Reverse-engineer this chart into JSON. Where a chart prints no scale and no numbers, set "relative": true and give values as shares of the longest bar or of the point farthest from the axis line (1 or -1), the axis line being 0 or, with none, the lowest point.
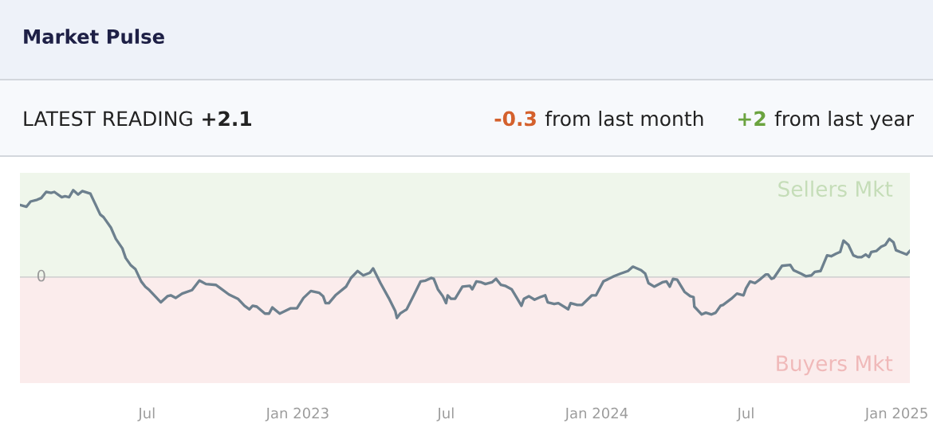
{
  "chart_data": {
    "type": "line",
    "title": "Market Pulse",
    "annotations": [
      "LATEST READING",
      "+2.1",
      "-0.3",
      "from last month",
      "+2",
      "from last year"
    ],
    "relative": true,
    "line_style": "solid",
    "x": [
      "2022-01-27",
      "2022-02-04",
      "2022-02-09",
      "2022-02-17",
      "2022-02-22",
      "2022-02-28",
      "2022-03-06",
      "2022-03-10",
      "2022-03-19",
      "2022-03-23",
      "2022-03-28",
      "2022-04-02",
      "2022-04-08",
      "2022-04-13",
      "2022-04-23",
      "2022-04-28",
      "2022-05-05",
      "2022-05-09",
      "2022-05-18",
      "2022-05-24",
      "2022-06-01",
      "2022-06-05",
      "2022-06-11",
      "2022-06-17",
      "2022-06-24",
      "2022-06-29",
      "2022-07-04",
      "2022-07-18",
      "2022-07-26",
      "2022-07-30",
      "2022-08-05",
      "2022-08-13",
      "2022-08-25",
      "2022-09-03",
      "2022-09-11",
      "2022-09-23",
      "2022-09-29",
      "2022-10-09",
      "2022-10-20",
      "2022-10-28",
      "2022-11-03",
      "2022-11-07",
      "2022-11-12",
      "2022-11-22",
      "2022-11-27",
      "2022-12-01",
      "2022-12-10",
      "2022-12-23",
      "2022-12-31",
      "2023-01-08",
      "2023-01-17",
      "2023-01-27",
      "2023-02-01",
      "2023-02-04",
      "2023-02-08",
      "2023-02-16",
      "2023-03-01",
      "2023-03-07",
      "2023-03-15",
      "2023-03-22",
      "2023-03-30",
      "2023-04-03",
      "2023-04-12",
      "2023-04-22",
      "2023-04-30",
      "2023-05-02",
      "2023-05-06",
      "2023-05-14",
      "2023-05-22",
      "2023-05-31",
      "2023-06-06",
      "2023-06-13",
      "2023-06-16",
      "2023-06-21",
      "2023-06-27",
      "2023-07-01",
      "2023-07-03",
      "2023-07-07",
      "2023-07-12",
      "2023-07-21",
      "2023-07-30",
      "2023-08-02",
      "2023-08-07",
      "2023-08-13",
      "2023-08-18",
      "2023-08-26",
      "2023-08-31",
      "2023-09-06",
      "2023-09-11",
      "2023-09-19",
      "2023-09-26",
      "2023-10-01",
      "2023-10-04",
      "2023-10-10",
      "2023-10-17",
      "2023-10-24",
      "2023-10-30",
      "2023-11-02",
      "2023-11-10",
      "2023-11-15",
      "2023-11-27",
      "2023-11-30",
      "2023-12-08",
      "2023-12-14",
      "2023-12-26",
      "2023-12-31",
      "2024-01-09",
      "2024-01-22",
      "2024-01-30",
      "2024-02-08",
      "2024-02-14",
      "2024-02-24",
      "2024-02-29",
      "2024-03-04",
      "2024-03-11",
      "2024-03-21",
      "2024-03-26",
      "2024-03-30",
      "2024-04-03",
      "2024-04-08",
      "2024-04-17",
      "2024-04-24",
      "2024-04-28",
      "2024-04-29",
      "2024-05-08",
      "2024-05-13",
      "2024-05-20",
      "2024-05-25",
      "2024-05-31",
      "2024-06-03",
      "2024-06-13",
      "2024-06-20",
      "2024-06-28",
      "2024-07-01",
      "2024-07-06",
      "2024-07-12",
      "2024-07-19",
      "2024-07-25",
      "2024-07-28",
      "2024-08-01",
      "2024-08-04",
      "2024-08-14",
      "2024-08-24",
      "2024-08-28",
      "2024-09-06",
      "2024-09-12",
      "2024-09-19",
      "2024-09-23",
      "2024-09-30",
      "2024-10-08",
      "2024-10-13",
      "2024-10-19",
      "2024-10-24",
      "2024-10-28",
      "2024-11-03",
      "2024-11-09",
      "2024-11-14",
      "2024-11-19",
      "2024-11-24",
      "2024-11-28",
      "2024-12-01",
      "2024-12-07",
      "2024-12-13",
      "2024-12-18",
      "2024-12-23",
      "2024-12-28",
      "2024-12-31",
      "2025-01-05",
      "2025-01-13",
      "2025-01-17"
    ],
    "series": [
      {
        "color": "#6d808e",
        "values": [
          0.83,
          0.81,
          0.87,
          0.89,
          0.91,
          0.98,
          0.97,
          0.98,
          0.92,
          0.93,
          0.92,
          1.0,
          0.95,
          0.99,
          0.96,
          0.86,
          0.72,
          0.69,
          0.57,
          0.44,
          0.33,
          0.22,
          0.14,
          0.09,
          -0.05,
          -0.11,
          -0.15,
          -0.29,
          -0.22,
          -0.21,
          -0.24,
          -0.19,
          -0.15,
          -0.04,
          -0.08,
          -0.09,
          -0.13,
          -0.2,
          -0.25,
          -0.33,
          -0.37,
          -0.33,
          -0.34,
          -0.42,
          -0.42,
          -0.35,
          -0.42,
          -0.36,
          -0.36,
          -0.24,
          -0.16,
          -0.18,
          -0.22,
          -0.3,
          -0.3,
          -0.21,
          -0.11,
          -0.01,
          0.07,
          0.02,
          0.05,
          0.1,
          -0.07,
          -0.24,
          -0.39,
          -0.47,
          -0.42,
          -0.37,
          -0.22,
          -0.05,
          -0.04,
          -0.01,
          -0.02,
          -0.14,
          -0.22,
          -0.3,
          -0.21,
          -0.25,
          -0.25,
          -0.11,
          -0.1,
          -0.14,
          -0.05,
          -0.06,
          -0.08,
          -0.06,
          -0.02,
          -0.09,
          -0.1,
          -0.14,
          -0.25,
          -0.33,
          -0.25,
          -0.22,
          -0.26,
          -0.23,
          -0.21,
          -0.29,
          -0.31,
          -0.3,
          -0.37,
          -0.3,
          -0.32,
          -0.32,
          -0.21,
          -0.21,
          -0.05,
          0.01,
          0.04,
          0.07,
          0.12,
          0.08,
          0.04,
          -0.07,
          -0.11,
          -0.06,
          -0.05,
          -0.11,
          -0.02,
          -0.03,
          -0.17,
          -0.22,
          -0.23,
          -0.34,
          -0.43,
          -0.41,
          -0.43,
          -0.41,
          -0.33,
          -0.32,
          -0.25,
          -0.19,
          -0.21,
          -0.13,
          -0.05,
          -0.07,
          -0.02,
          0.03,
          0.03,
          -0.02,
          -0.01,
          0.13,
          0.14,
          0.08,
          0.04,
          0.01,
          0.02,
          0.06,
          0.07,
          0.25,
          0.24,
          0.27,
          0.29,
          0.42,
          0.37,
          0.25,
          0.23,
          0.23,
          0.26,
          0.23,
          0.29,
          0.3,
          0.35,
          0.37,
          0.44,
          0.4,
          0.31,
          0.29,
          0.26,
          0.3
        ]
      }
    ],
    "xlim": [
      "2022-01-27",
      "2025-01-17"
    ],
    "xticks": [
      {
        "value": "2022-07-01",
        "label": "Jul"
      },
      {
        "value": "2023-01-01",
        "label": "Jan 2023"
      },
      {
        "value": "2023-07-01",
        "label": "Jul"
      },
      {
        "value": "2024-01-01",
        "label": "Jan 2024"
      },
      {
        "value": "2024-07-01",
        "label": "Jul"
      },
      {
        "value": "2025-01-01",
        "label": "Jan 2025"
      }
    ],
    "ref_lines": [
      {
        "axis": "y",
        "value": 0,
        "label": "0",
        "color": "#d3d3d3"
      }
    ],
    "bands": [
      {
        "axis": "y",
        "from": 0,
        "to": 1.2,
        "label": "Sellers Mkt",
        "color": "#c5ddb8"
      },
      {
        "axis": "y",
        "from": -1.22,
        "to": 0,
        "label": "Buyers Mkt",
        "color": "#f0b9b9"
      }
    ]
  }
}
